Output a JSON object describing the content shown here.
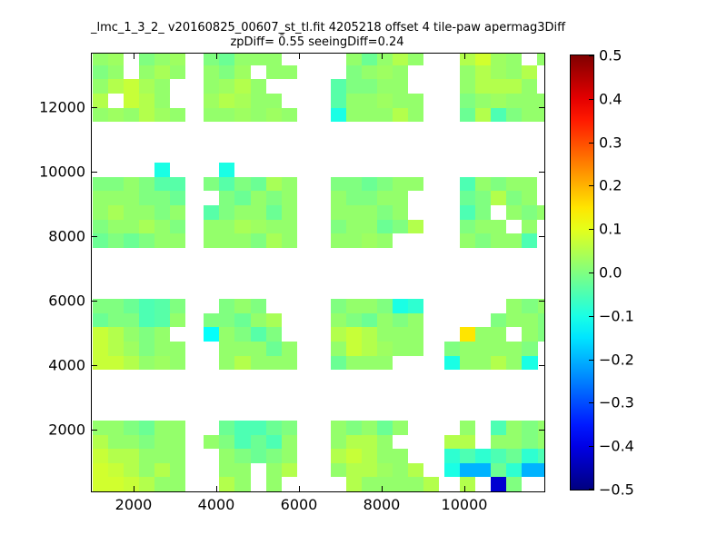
{
  "figure": {
    "background": "#ffffff",
    "title": "_lmc_1_3_2_ v20160825_00607_st_tl.fit 4205218 offset 4 tile-paw apermag3Diff",
    "subtitle": "zpDiff= 0̄.55 seeingDiff=0.24"
  },
  "chart_data": {
    "type": "heatmap",
    "title": "_lmc_1_3_2_ v20160825_00607_st_tl.fit 4205218 offset 4 tile-paw apermag3Diff",
    "subtitle": "zpDiff= 0̄.55 seeingDiff=0.24",
    "colormap": "jet",
    "clim": [
      -0.5,
      0.5
    ],
    "xlim": [
      989,
      11934
    ],
    "ylim": [
      80,
      13670
    ],
    "grid": false,
    "legend": "colorbar-right",
    "xticks": [
      2000,
      4000,
      6000,
      8000,
      10000
    ],
    "xticklabels": [
      "2000",
      "4000",
      "6000",
      "8000",
      "10000"
    ],
    "yticks": [
      2000,
      4000,
      6000,
      8000,
      10000,
      12000
    ],
    "yticklabels": [
      "2000",
      "4000",
      "6000",
      "8000",
      "10000",
      "12000"
    ],
    "colorbar_ticks": [
      0.5,
      0.4,
      0.3,
      0.2,
      0.1,
      0.0,
      -0.1,
      -0.2,
      -0.3,
      -0.4,
      -0.5
    ],
    "colorbar_ticklabels": [
      "0.5",
      "0.4",
      "0.3",
      "0.2",
      "0.1",
      "0.0",
      "−0.1",
      "−0.2",
      "−0.3",
      "−0.4",
      "−0.5"
    ],
    "cell_dx": 375,
    "cell_dy": 440,
    "blocks": [
      {
        "name": "A1",
        "x0": 1000,
        "y_top": 13750,
        "values": [
          [
            0.02,
            0.03,
            null,
            0.0,
            0.02,
            0.03
          ],
          [
            0.0,
            0.02,
            null,
            0.02,
            0.04,
            0.02
          ],
          [
            0.02,
            0.05,
            0.07,
            0.04,
            0.02,
            null
          ],
          [
            0.05,
            null,
            0.07,
            0.05,
            0.02,
            null
          ],
          [
            0.02,
            0.03,
            0.02,
            0.05,
            0.03,
            0.02
          ]
        ]
      },
      {
        "name": "A2",
        "x0": 3700,
        "y_top": 13750,
        "values": [
          [
            0.0,
            -0.02,
            0.02,
            0.02,
            0.02,
            null
          ],
          [
            0.02,
            0.0,
            0.03,
            null,
            0.02,
            0.02
          ],
          [
            0.02,
            0.03,
            0.05,
            0.02,
            null,
            null
          ],
          [
            0.03,
            0.05,
            0.04,
            0.02,
            0.02,
            null
          ],
          [
            0.02,
            0.02,
            0.03,
            0.02,
            0.03,
            0.02
          ]
        ]
      },
      {
        "name": "A3",
        "x0": 6770,
        "y_top": 13750,
        "values": [
          [
            null,
            0.02,
            -0.02,
            0.02,
            0.05,
            0.02
          ],
          [
            null,
            0.0,
            0.02,
            0.03,
            0.02,
            null
          ],
          [
            -0.04,
            0.0,
            0.0,
            0.02,
            0.02,
            null
          ],
          [
            -0.04,
            0.02,
            0.02,
            0.03,
            0.02,
            0.02
          ],
          [
            -0.1,
            0.02,
            0.02,
            0.02,
            0.05,
            0.02
          ]
        ]
      },
      {
        "name": "A4",
        "x0": 9890,
        "y_top": 13750,
        "values": [
          [
            0.05,
            0.08,
            0.03,
            0.02,
            null,
            0.02
          ],
          [
            0.02,
            0.05,
            0.03,
            0.02,
            0.05,
            null
          ],
          [
            0.02,
            0.05,
            0.05,
            0.05,
            0.02,
            null
          ],
          [
            0.0,
            0.02,
            0.03,
            0.02,
            0.02,
            0.02
          ],
          [
            -0.02,
            0.05,
            -0.05,
            0.0,
            0.02,
            0.02
          ]
        ]
      },
      {
        "name": "B1",
        "x0": 1000,
        "y_top": 10280,
        "values": [
          [
            null,
            null,
            null,
            null,
            -0.1,
            null
          ],
          [
            0.0,
            0.0,
            0.02,
            0.0,
            -0.04,
            -0.04
          ],
          [
            0.02,
            0.02,
            0.02,
            0.0,
            0.0,
            -0.02
          ],
          [
            0.02,
            0.04,
            0.02,
            0.02,
            0.0,
            0.02
          ],
          [
            0.0,
            0.02,
            0.02,
            0.04,
            0.02,
            0.0
          ],
          [
            -0.02,
            0.0,
            -0.02,
            0.0,
            0.02,
            0.02
          ]
        ]
      },
      {
        "name": "B2",
        "x0": 3700,
        "y_top": 10280,
        "values": [
          [
            null,
            -0.1,
            null,
            null,
            null,
            null
          ],
          [
            0.0,
            -0.04,
            0.0,
            -0.02,
            0.04,
            0.02
          ],
          [
            null,
            0.0,
            -0.02,
            0.02,
            0.0,
            0.02
          ],
          [
            -0.04,
            0.0,
            0.02,
            0.02,
            -0.02,
            0.02
          ],
          [
            0.02,
            0.02,
            0.04,
            0.03,
            0.02,
            0.02
          ],
          [
            0.02,
            0.02,
            0.02,
            0.0,
            0.04,
            0.02
          ]
        ]
      },
      {
        "name": "B3",
        "x0": 6770,
        "y_top": 9840,
        "values": [
          [
            0.0,
            0.0,
            -0.02,
            0.0,
            0.02,
            0.02
          ],
          [
            0.02,
            0.0,
            0.0,
            0.02,
            0.02,
            null
          ],
          [
            0.02,
            0.02,
            0.02,
            0.0,
            0.02,
            null
          ],
          [
            0.0,
            0.02,
            0.02,
            -0.02,
            0.0,
            0.05
          ],
          [
            0.02,
            0.02,
            0.03,
            0.02,
            null,
            null
          ]
        ]
      },
      {
        "name": "B4",
        "x0": 9890,
        "y_top": 9840,
        "values": [
          [
            -0.05,
            0.02,
            0.0,
            0.02,
            0.02,
            null
          ],
          [
            -0.02,
            0.0,
            0.05,
            0.0,
            0.02,
            null
          ],
          [
            -0.05,
            0.0,
            null,
            0.02,
            0.0,
            0.02
          ],
          [
            0.0,
            0.02,
            0.02,
            null,
            0.02,
            null
          ],
          [
            0.02,
            0.0,
            0.02,
            0.02,
            -0.05,
            null
          ]
        ]
      },
      {
        "name": "C1",
        "x0": 1000,
        "y_top": 6050,
        "values": [
          [
            0.0,
            0.0,
            -0.02,
            -0.05,
            -0.04,
            0.0
          ],
          [
            -0.02,
            0.0,
            0.0,
            -0.05,
            -0.04,
            0.02
          ],
          [
            0.07,
            0.05,
            0.02,
            0.0,
            0.02,
            null
          ],
          [
            0.07,
            0.05,
            0.03,
            0.0,
            0.02,
            0.02
          ],
          [
            0.07,
            0.07,
            0.05,
            0.02,
            0.03,
            0.02
          ]
        ]
      },
      {
        "name": "C2",
        "x0": 3700,
        "y_top": 6050,
        "values": [
          [
            null,
            0.0,
            0.02,
            0.0,
            null,
            null
          ],
          [
            0.0,
            0.0,
            -0.02,
            0.02,
            0.04,
            null
          ],
          [
            -0.12,
            0.02,
            0.0,
            -0.04,
            0.0,
            null
          ],
          [
            null,
            0.02,
            0.02,
            0.02,
            -0.02,
            0.02
          ],
          [
            null,
            0.02,
            0.05,
            0.02,
            0.02,
            0.02
          ]
        ]
      },
      {
        "name": "C3",
        "x0": 6770,
        "y_top": 6050,
        "values": [
          [
            0.0,
            0.02,
            0.02,
            0.0,
            -0.1,
            -0.08
          ],
          [
            0.02,
            0.0,
            -0.02,
            0.02,
            0.0,
            0.02
          ],
          [
            0.05,
            0.07,
            0.05,
            0.02,
            0.02,
            0.02
          ],
          [
            0.02,
            0.07,
            0.05,
            0.03,
            0.02,
            0.02
          ],
          [
            -0.02,
            0.02,
            0.02,
            0.02,
            null,
            null
          ]
        ]
      },
      {
        "name": "C4",
        "x0": 9520,
        "y_top": 6050,
        "values": [
          [
            null,
            null,
            null,
            null,
            0.02,
            0.0,
            0.02
          ],
          [
            null,
            null,
            null,
            0.0,
            0.02,
            0.02,
            0.0
          ],
          [
            null,
            0.15,
            0.02,
            0.02,
            null,
            0.02,
            0.0
          ],
          [
            0.0,
            0.02,
            0.02,
            0.02,
            0.02,
            0.0,
            null
          ],
          [
            -0.1,
            0.02,
            0.02,
            0.05,
            0.02,
            -0.1,
            null
          ]
        ]
      },
      {
        "name": "D1",
        "x0": 1000,
        "y_top": 2280,
        "values": [
          [
            0.02,
            0.02,
            0.0,
            -0.02,
            0.02,
            0.02
          ],
          [
            0.05,
            0.02,
            0.02,
            0.0,
            0.02,
            0.02
          ],
          [
            0.07,
            0.05,
            0.05,
            0.02,
            0.02,
            0.02
          ],
          [
            0.08,
            0.07,
            0.05,
            0.02,
            0.05,
            0.02
          ],
          [
            0.08,
            0.08,
            0.07,
            0.05,
            0.02,
            0.02
          ]
        ]
      },
      {
        "name": "D2",
        "x0": 3700,
        "y_top": 2280,
        "values": [
          [
            null,
            -0.02,
            -0.05,
            -0.05,
            -0.02,
            0.0
          ],
          [
            0.02,
            0.0,
            -0.05,
            -0.02,
            -0.05,
            0.02
          ],
          [
            null,
            0.02,
            0.0,
            -0.02,
            0.0,
            0.02
          ],
          [
            null,
            0.02,
            0.02,
            null,
            0.02,
            0.05
          ],
          [
            null,
            0.05,
            0.02,
            null,
            0.02,
            null
          ]
        ]
      },
      {
        "name": "D3",
        "x0": 6770,
        "y_top": 2280,
        "values": [
          [
            0.02,
            0.0,
            0.02,
            -0.02,
            0.02,
            null,
            null
          ],
          [
            0.02,
            0.05,
            0.05,
            0.02,
            null,
            null,
            null
          ],
          [
            0.05,
            0.07,
            0.05,
            0.02,
            0.02,
            null,
            null
          ],
          [
            0.02,
            0.05,
            0.05,
            0.03,
            0.02,
            0.05,
            null
          ],
          [
            null,
            0.05,
            0.02,
            0.02,
            0.02,
            0.02,
            0.05
          ]
        ]
      },
      {
        "name": "D4",
        "x0": 9520,
        "y_top": 2280,
        "values": [
          [
            null,
            0.02,
            null,
            -0.05,
            0.02,
            0.0,
            0.02
          ],
          [
            0.05,
            0.05,
            null,
            0.02,
            0.02,
            0.0,
            0.02
          ],
          [
            -0.08,
            -0.05,
            -0.08,
            -0.05,
            -0.02,
            -0.08,
            -0.05
          ],
          [
            -0.1,
            -0.2,
            -0.2,
            -0.02,
            -0.08,
            -0.2,
            -0.2
          ],
          [
            null,
            0.05,
            null,
            -0.42,
            0.0,
            null,
            null
          ]
        ]
      }
    ]
  }
}
